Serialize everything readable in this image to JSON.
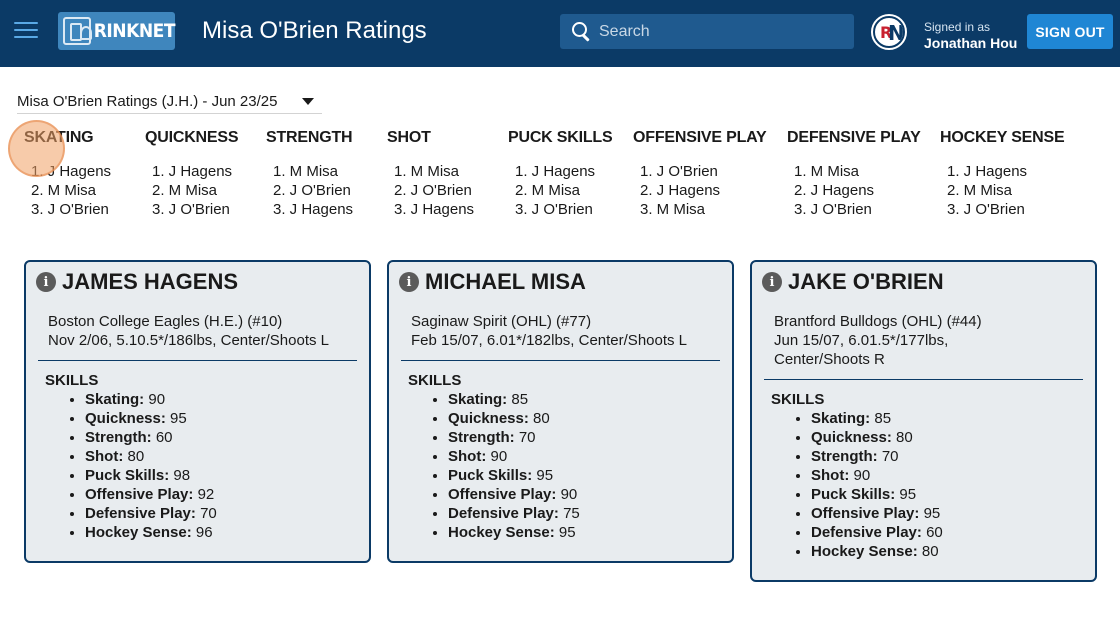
{
  "header": {
    "logo_text": "RINKNET",
    "title": "Misa O'Brien Ratings",
    "search_placeholder": "Search",
    "avatar_letters_1": "R",
    "avatar_letters_2": "N",
    "signed_in_label": "Signed in as",
    "user_name": "Jonathan Hou",
    "signout_label": "SIGN OUT"
  },
  "selector": {
    "value": "Misa O'Brien Ratings (J.H.) - Jun 23/25"
  },
  "rankings": [
    {
      "category": "SKATING",
      "ranks": [
        "1. J Hagens",
        "2. M Misa",
        "3. J O'Brien"
      ]
    },
    {
      "category": "QUICKNESS",
      "ranks": [
        "1. J Hagens",
        "2. M Misa",
        "3. J O'Brien"
      ]
    },
    {
      "category": "STRENGTH",
      "ranks": [
        "1. M Misa",
        "2. J O'Brien",
        "3. J Hagens"
      ]
    },
    {
      "category": "SHOT",
      "ranks": [
        "1. M Misa",
        "2. J O'Brien",
        "3. J Hagens"
      ]
    },
    {
      "category": "PUCK SKILLS",
      "ranks": [
        "1. J Hagens",
        "2. M Misa",
        "3. J O'Brien"
      ]
    },
    {
      "category": "OFFENSIVE PLAY",
      "ranks": [
        "1. J O'Brien",
        "2. J Hagens",
        "3. M Misa"
      ]
    },
    {
      "category": "DEFENSIVE PLAY",
      "ranks": [
        "1. M Misa",
        "2. J Hagens",
        "3. J O'Brien"
      ]
    },
    {
      "category": "HOCKEY SENSE",
      "ranks": [
        "1. J Hagens",
        "2. M Misa",
        "3. J O'Brien"
      ]
    }
  ],
  "players": [
    {
      "name": "JAMES HAGENS",
      "team": "Boston College Eagles (H.E.) (#10)",
      "bio": "Nov 2/06, 5.10.5*/186lbs, Center/Shoots L",
      "skills_title": "SKILLS",
      "skills": [
        {
          "label": "Skating:",
          "value": "90"
        },
        {
          "label": "Quickness:",
          "value": "95"
        },
        {
          "label": "Strength:",
          "value": "60"
        },
        {
          "label": "Shot:",
          "value": "80"
        },
        {
          "label": "Puck Skills:",
          "value": "98"
        },
        {
          "label": "Offensive Play:",
          "value": "92"
        },
        {
          "label": "Defensive Play:",
          "value": "70"
        },
        {
          "label": "Hockey Sense:",
          "value": "96"
        }
      ]
    },
    {
      "name": "MICHAEL MISA",
      "team": "Saginaw Spirit (OHL) (#77)",
      "bio": "Feb 15/07, 6.01*/182lbs, Center/Shoots L",
      "skills_title": "SKILLS",
      "skills": [
        {
          "label": "Skating:",
          "value": "85"
        },
        {
          "label": "Quickness:",
          "value": "80"
        },
        {
          "label": "Strength:",
          "value": "70"
        },
        {
          "label": "Shot:",
          "value": "90"
        },
        {
          "label": "Puck Skills:",
          "value": "95"
        },
        {
          "label": "Offensive Play:",
          "value": "90"
        },
        {
          "label": "Defensive Play:",
          "value": "75"
        },
        {
          "label": "Hockey Sense:",
          "value": "95"
        }
      ]
    },
    {
      "name": "JAKE O'BRIEN",
      "team": "Brantford Bulldogs (OHL) (#44)",
      "bio": "Jun 15/07, 6.01.5*/177lbs, Center/Shoots R",
      "skills_title": "SKILLS",
      "skills": [
        {
          "label": "Skating:",
          "value": "85"
        },
        {
          "label": "Quickness:",
          "value": "80"
        },
        {
          "label": "Strength:",
          "value": "70"
        },
        {
          "label": "Shot:",
          "value": "90"
        },
        {
          "label": "Puck Skills:",
          "value": "95"
        },
        {
          "label": "Offensive Play:",
          "value": "95"
        },
        {
          "label": "Defensive Play:",
          "value": "60"
        },
        {
          "label": "Hockey Sense:",
          "value": "80"
        }
      ]
    }
  ]
}
